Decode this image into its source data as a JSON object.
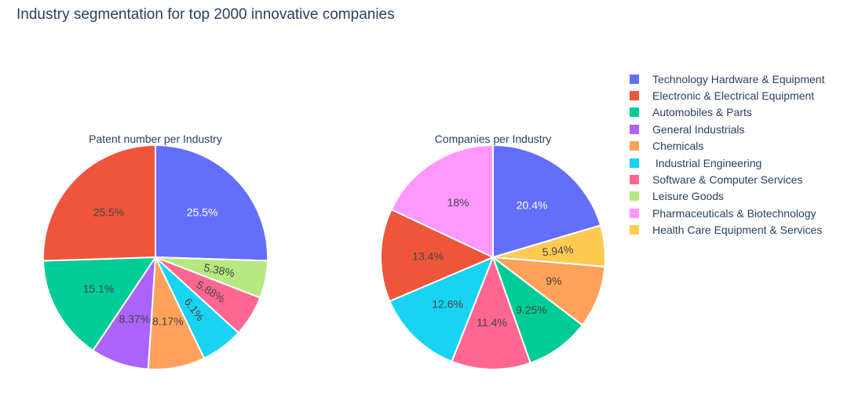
{
  "title": "Industry segmentation for top 2000 innovative companies",
  "legend": [
    {
      "label": "Technology Hardware & Equipment",
      "color": "#636efa"
    },
    {
      "label": "Electronic & Electrical Equipment",
      "color": "#ef553b"
    },
    {
      "label": "Automobiles & Parts",
      "color": "#00cc96"
    },
    {
      "label": "General Industrials",
      "color": "#ab63fa"
    },
    {
      "label": "Chemicals",
      "color": "#ffa15a"
    },
    {
      "label": " Industrial Engineering",
      "color": "#19d3f3"
    },
    {
      "label": "Software & Computer Services",
      "color": "#ff6692"
    },
    {
      "label": "Leisure Goods",
      "color": "#b6e880"
    },
    {
      "label": "Pharmaceuticals & Biotechnology",
      "color": "#ff97ff"
    },
    {
      "label": "Health Care Equipment & Services",
      "color": "#fecb52"
    }
  ],
  "chart_data": [
    {
      "type": "pie",
      "title": "Patent number per Industry",
      "slices": [
        {
          "label": "Technology Hardware & Equipment",
          "value": 25.5,
          "text": "25.5%"
        },
        {
          "label": "Leisure Goods",
          "value": 5.38,
          "text": "5.38%"
        },
        {
          "label": "Software & Computer Services",
          "value": 5.88,
          "text": "5.88%"
        },
        {
          "label": " Industrial Engineering",
          "value": 6.1,
          "text": "6.1%"
        },
        {
          "label": "Chemicals",
          "value": 8.17,
          "text": "8.17%"
        },
        {
          "label": "General Industrials",
          "value": 8.37,
          "text": "8.37%"
        },
        {
          "label": "Automobiles & Parts",
          "value": 15.1,
          "text": "15.1%"
        },
        {
          "label": "Electronic & Electrical Equipment",
          "value": 25.5,
          "text": "25.5%"
        }
      ]
    },
    {
      "type": "pie",
      "title": "Companies per Industry",
      "slices": [
        {
          "label": "Technology Hardware & Equipment",
          "value": 20.4,
          "text": "20.4%"
        },
        {
          "label": "Health Care Equipment & Services",
          "value": 5.94,
          "text": "5.94%"
        },
        {
          "label": "Chemicals",
          "value": 9,
          "text": "9%"
        },
        {
          "label": "Automobiles & Parts",
          "value": 9.25,
          "text": "9.25%"
        },
        {
          "label": "Software & Computer Services",
          "value": 11.4,
          "text": "11.4%"
        },
        {
          "label": " Industrial Engineering",
          "value": 12.6,
          "text": "12.6%"
        },
        {
          "label": "Electronic & Electrical Equipment",
          "value": 13.4,
          "text": "13.4%"
        },
        {
          "label": "Pharmaceuticals & Biotechnology",
          "value": 18,
          "text": "18%"
        }
      ]
    }
  ]
}
